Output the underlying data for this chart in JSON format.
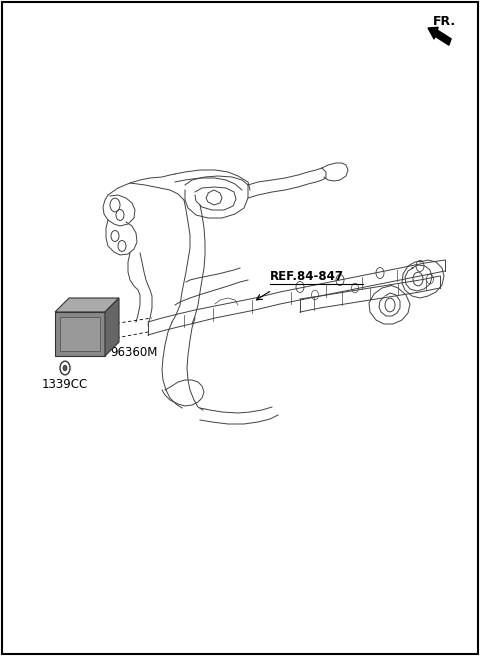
{
  "bg_color": "#ffffff",
  "fr_label": "FR.",
  "part_label_1": "96360M",
  "part_label_2": "1339CC",
  "ref_label": "REF.84-847",
  "label_color": "#000000",
  "draw_color": "#404040",
  "border_color": "#000000"
}
